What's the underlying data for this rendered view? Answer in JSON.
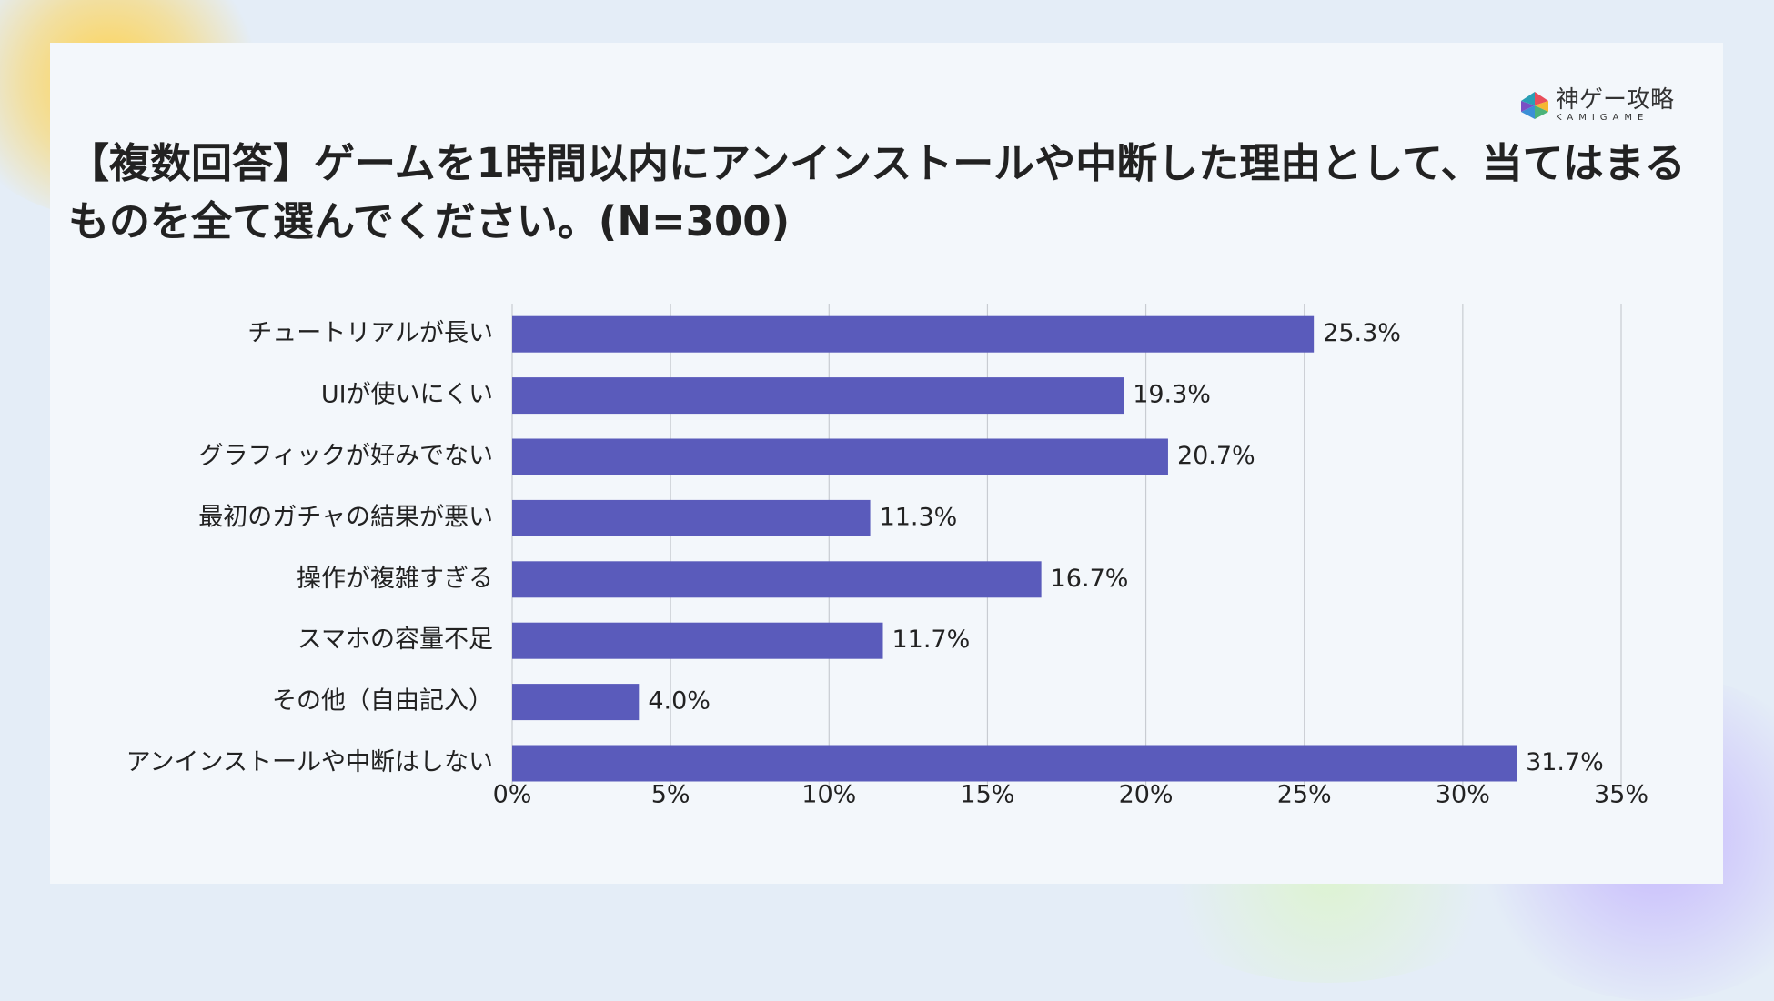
{
  "logo": {
    "name": "神ゲー攻略",
    "sub": "KAMIGAME"
  },
  "chart_data": {
    "type": "bar",
    "orientation": "horizontal",
    "title": "【複数回答】ゲームを1時間以内にアンインストールや中断した理由として、当てはまるものを全て選んでください。(N=300)",
    "categories": [
      "チュートリアルが長い",
      "UIが使いにくい",
      "グラフィックが好みでない",
      "最初のガチャの結果が悪い",
      "操作が複雑すぎる",
      "スマホの容量不足",
      "その他（自由記入）",
      "アンインストールや中断はしない"
    ],
    "values": [
      25.3,
      19.3,
      20.7,
      11.3,
      16.7,
      11.7,
      4.0,
      31.7
    ],
    "value_labels": [
      "25.3%",
      "19.3%",
      "20.7%",
      "11.3%",
      "16.7%",
      "11.7%",
      "4.0%",
      "31.7%"
    ],
    "color": "#5a5bbb",
    "xlim": [
      0,
      35
    ],
    "xticks": [
      {
        "value": 0,
        "label": "0%"
      },
      {
        "value": 5,
        "label": "5%"
      },
      {
        "value": 10,
        "label": "10%"
      },
      {
        "value": 15,
        "label": "15%"
      },
      {
        "value": 20,
        "label": "20%"
      },
      {
        "value": 25,
        "label": "25%"
      },
      {
        "value": 30,
        "label": "30%"
      },
      {
        "value": 35,
        "label": "35%"
      }
    ],
    "grid": true
  }
}
